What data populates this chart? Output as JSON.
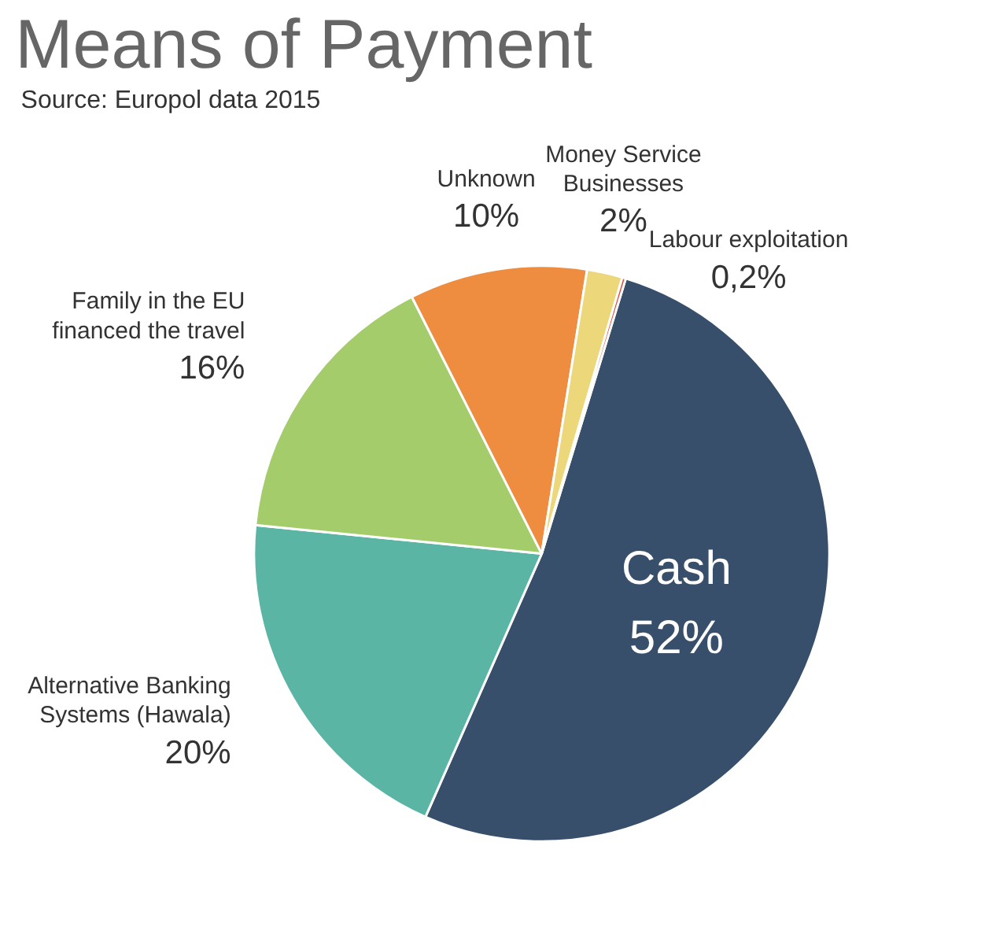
{
  "chart_data": {
    "type": "pie",
    "title": "Means of Payment",
    "categories": [
      "Cash",
      "Alternative Banking\nSystems (Hawala)",
      "Family in the EU\nfinanced the travel",
      "Unknown",
      "Money Service\nBusinesses",
      "Labour exploitation"
    ],
    "values": [
      52,
      20,
      16,
      10,
      2,
      0.2
    ],
    "value_labels": [
      "52%",
      "20%",
      "16%",
      "10%",
      "2%",
      "0,2%"
    ],
    "colors": [
      "#374f6b",
      "#5bb5a5",
      "#a5cc6b",
      "#ee8c3f",
      "#ecd77a",
      "#e0473a"
    ],
    "annotations": [
      "Source: Europol data 2015"
    ]
  }
}
